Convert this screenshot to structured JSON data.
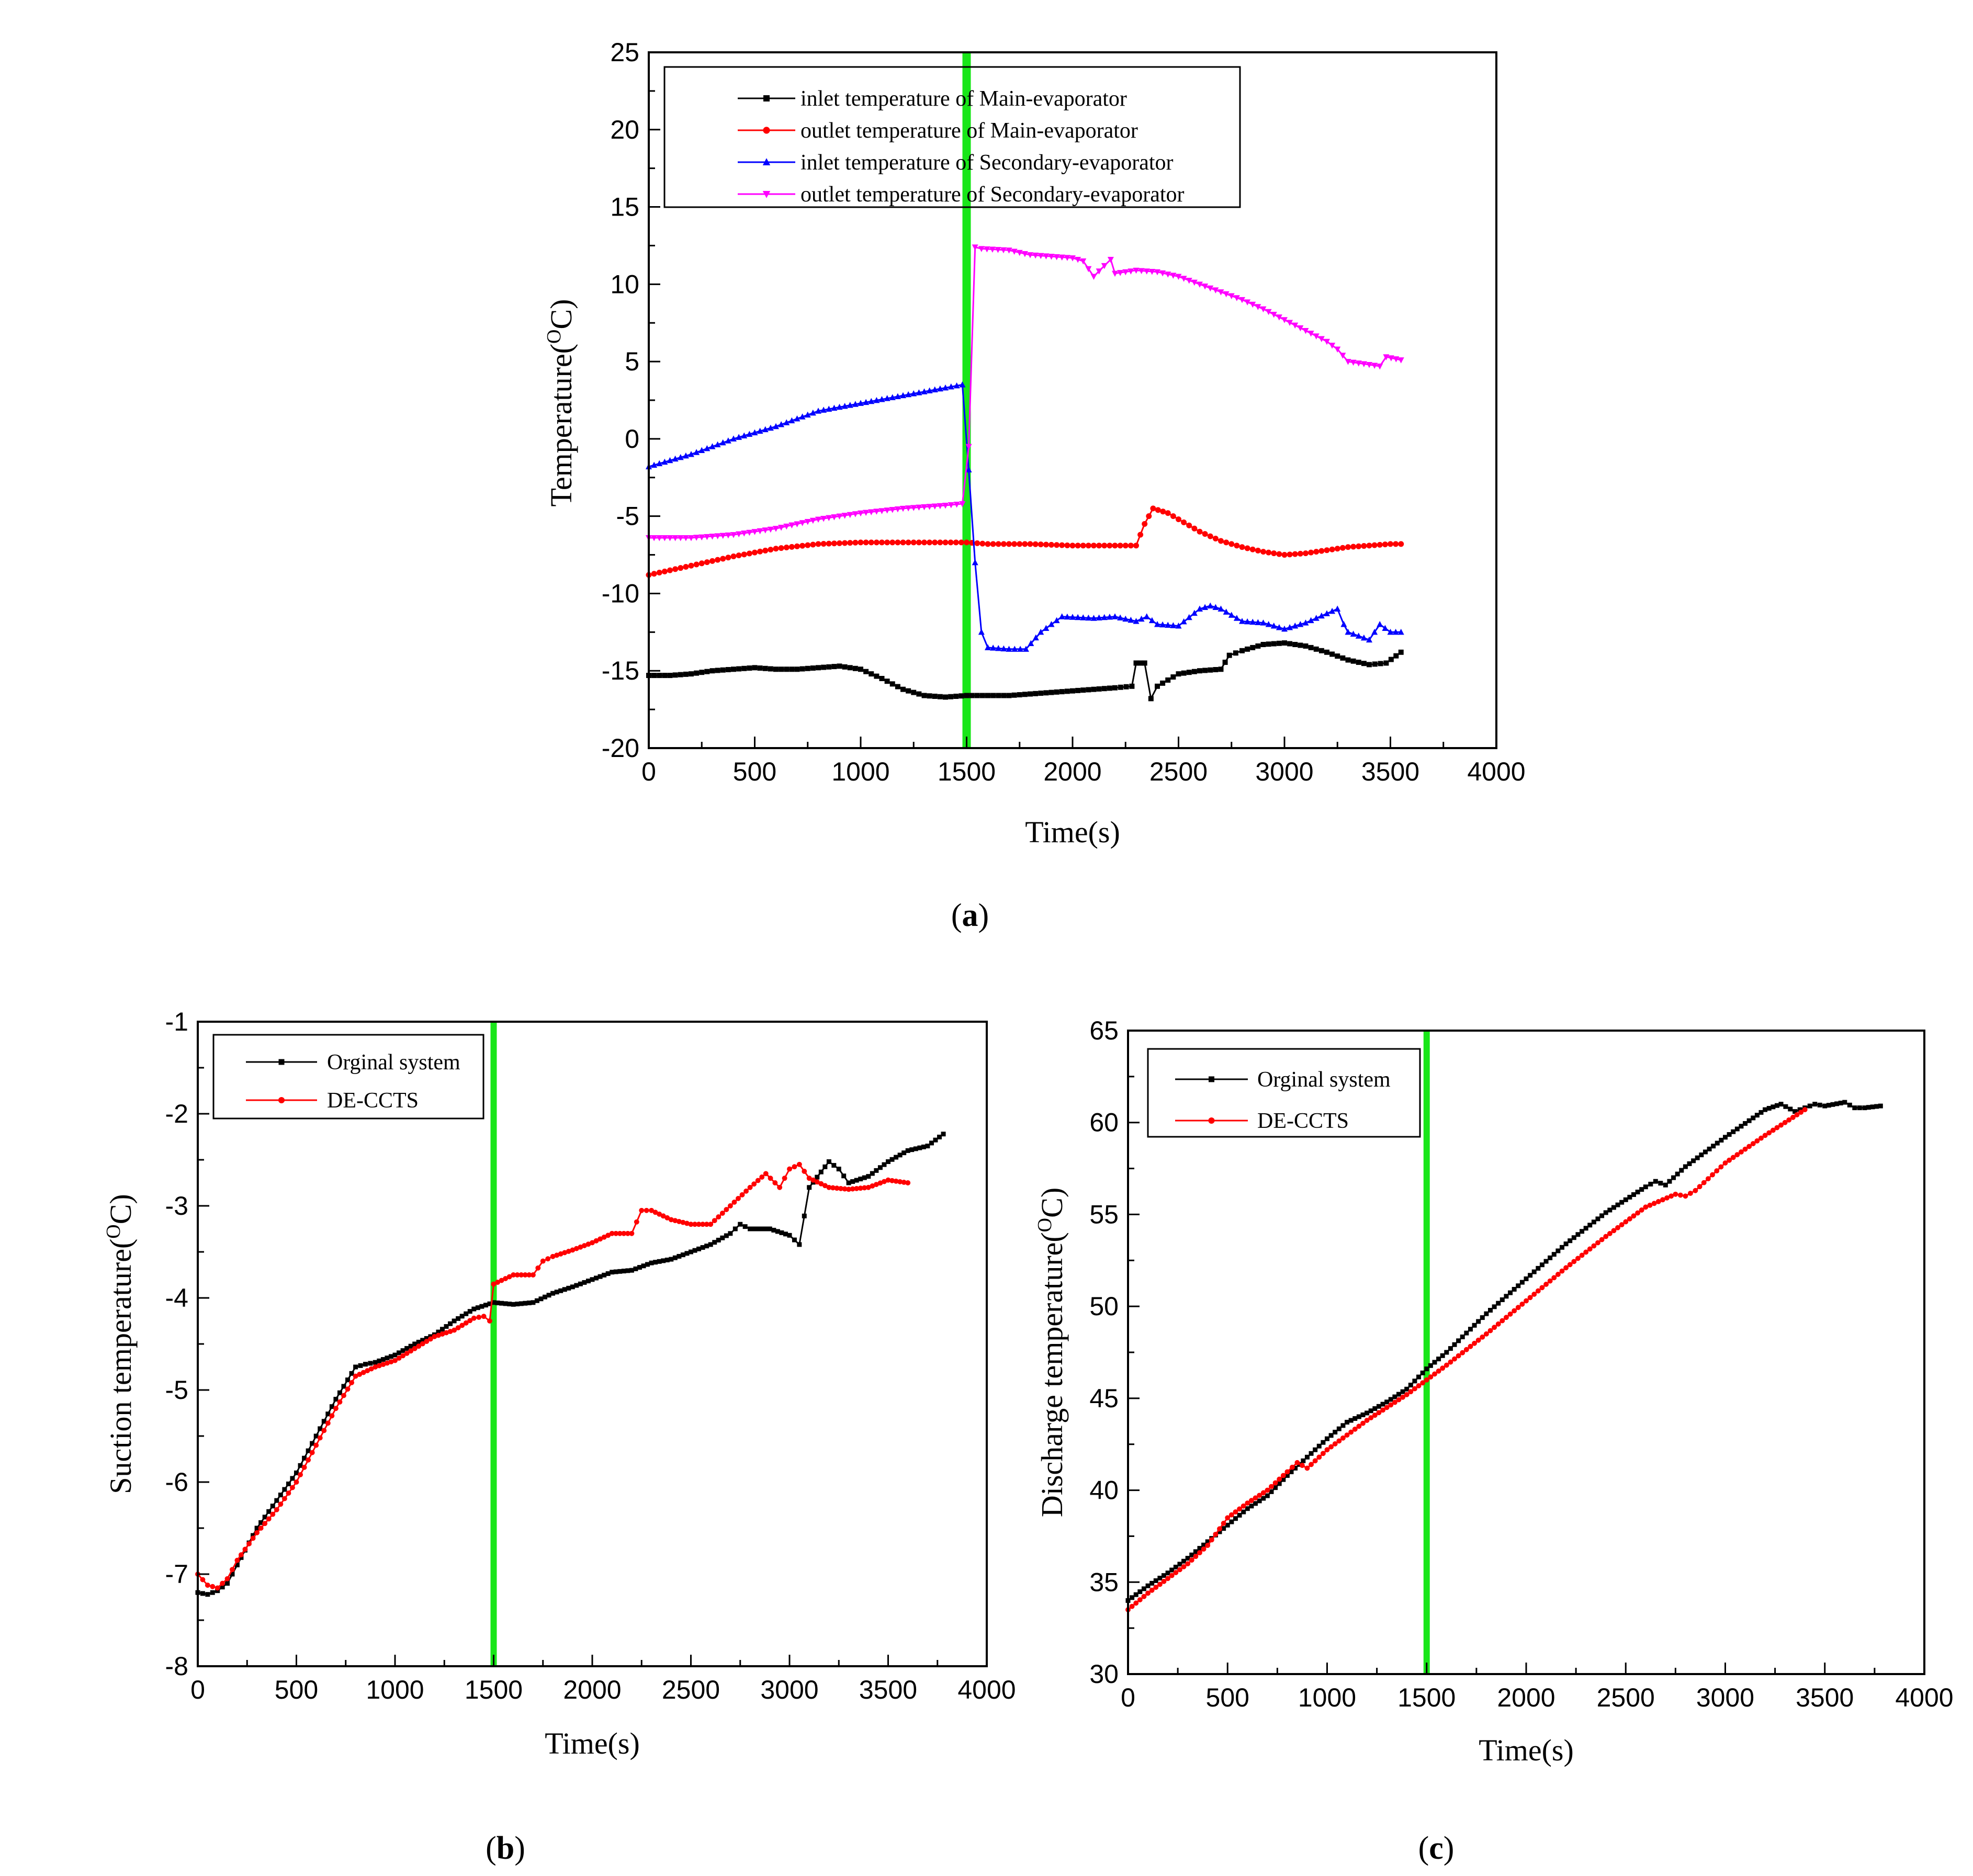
{
  "chart_data": [
    {
      "id": "a",
      "type": "line",
      "caption": "a",
      "xlabel": "Time(s)",
      "ylabel": "Temperature(",
      "ylabel_sup": "O",
      "ylabel_tail": "C)",
      "xlim": [
        0,
        4000
      ],
      "ylim": [
        -20,
        25
      ],
      "xticks": [
        "0",
        "500",
        "1000",
        "1500",
        "2000",
        "2500",
        "3000",
        "3500",
        "4000"
      ],
      "yticks": [
        "-20",
        "-15",
        "-10",
        "-5",
        "0",
        "5",
        "10",
        "15",
        "20",
        "25"
      ],
      "marker_line_x": 1500,
      "marker_line_color": "#19e619",
      "series": [
        {
          "name": "inlet temperature of Main-evaporator",
          "color": "#000000",
          "marker": "square",
          "x": [
            0,
            100,
            200,
            300,
            400,
            500,
            600,
            700,
            800,
            900,
            1000,
            1100,
            1200,
            1300,
            1400,
            1500,
            1600,
            1700,
            1800,
            1900,
            2000,
            2100,
            2200,
            2280,
            2300,
            2340,
            2370,
            2400,
            2500,
            2600,
            2700,
            2740,
            2800,
            2900,
            3000,
            3100,
            3200,
            3300,
            3400,
            3480,
            3550
          ],
          "values": [
            -15.3,
            -15.3,
            -15.2,
            -15.0,
            -14.9,
            -14.8,
            -14.9,
            -14.9,
            -14.8,
            -14.7,
            -14.9,
            -15.5,
            -16.2,
            -16.6,
            -16.7,
            -16.6,
            -16.6,
            -16.6,
            -16.5,
            -16.4,
            -16.3,
            -16.2,
            -16.1,
            -16.0,
            -14.5,
            -14.5,
            -16.8,
            -16.0,
            -15.2,
            -15.0,
            -14.9,
            -14.0,
            -13.7,
            -13.3,
            -13.2,
            -13.4,
            -13.8,
            -14.3,
            -14.6,
            -14.5,
            -13.8
          ]
        },
        {
          "name": "outlet temperature of Main-evaporator",
          "color": "#ff0000",
          "marker": "circle",
          "x": [
            0,
            200,
            400,
            600,
            800,
            1000,
            1200,
            1400,
            1500,
            1600,
            1800,
            2000,
            2200,
            2300,
            2340,
            2380,
            2450,
            2500,
            2600,
            2700,
            2800,
            2900,
            3000,
            3100,
            3200,
            3300,
            3400,
            3500,
            3550
          ],
          "values": [
            -8.8,
            -8.2,
            -7.6,
            -7.1,
            -6.8,
            -6.7,
            -6.7,
            -6.7,
            -6.7,
            -6.8,
            -6.8,
            -6.9,
            -6.9,
            -6.9,
            -5.5,
            -4.5,
            -4.8,
            -5.2,
            -6.0,
            -6.6,
            -7.0,
            -7.3,
            -7.5,
            -7.4,
            -7.2,
            -7.0,
            -6.9,
            -6.8,
            -6.8
          ]
        },
        {
          "name": "inlet temperature of Secondary-evaporator",
          "color": "#0000ff",
          "marker": "triangle",
          "x": [
            0,
            200,
            400,
            600,
            800,
            1000,
            1200,
            1400,
            1480,
            1510,
            1540,
            1570,
            1600,
            1700,
            1780,
            1850,
            1950,
            2100,
            2200,
            2300,
            2350,
            2400,
            2500,
            2600,
            2650,
            2700,
            2750,
            2800,
            2900,
            3000,
            3100,
            3200,
            3250,
            3280,
            3300,
            3400,
            3450,
            3500,
            3550
          ],
          "values": [
            -1.8,
            -1.0,
            0.0,
            0.8,
            1.8,
            2.3,
            2.8,
            3.3,
            3.5,
            -2.0,
            -8.0,
            -12.5,
            -13.5,
            -13.6,
            -13.6,
            -12.5,
            -11.5,
            -11.6,
            -11.5,
            -11.8,
            -11.5,
            -12.0,
            -12.1,
            -11.0,
            -10.8,
            -11.0,
            -11.4,
            -11.8,
            -11.9,
            -12.3,
            -11.9,
            -11.3,
            -11.0,
            -12.0,
            -12.5,
            -13.0,
            -12.0,
            -12.5,
            -12.5
          ]
        },
        {
          "name": "outlet temperature of Secondary-evaporator",
          "color": "#ff00ff",
          "marker": "triangle-down",
          "x": [
            0,
            200,
            400,
            600,
            800,
            1000,
            1200,
            1400,
            1480,
            1510,
            1540,
            1570,
            1700,
            1800,
            1900,
            2000,
            2050,
            2100,
            2150,
            2180,
            2200,
            2300,
            2400,
            2500,
            2600,
            2700,
            2800,
            2900,
            3000,
            3100,
            3200,
            3250,
            3300,
            3400,
            3450,
            3480,
            3550
          ],
          "values": [
            -6.4,
            -6.4,
            -6.2,
            -5.8,
            -5.2,
            -4.8,
            -4.5,
            -4.3,
            -4.2,
            -0.5,
            12.4,
            12.3,
            12.2,
            11.9,
            11.8,
            11.7,
            11.5,
            10.5,
            11.2,
            11.6,
            10.7,
            10.9,
            10.8,
            10.5,
            10.0,
            9.5,
            9.0,
            8.4,
            7.7,
            7.0,
            6.3,
            5.8,
            5.0,
            4.8,
            4.7,
            5.3,
            5.1
          ]
        }
      ]
    },
    {
      "id": "b",
      "type": "line",
      "caption": "b",
      "xlabel": "Time(s)",
      "ylabel": "Suction temperature(",
      "ylabel_sup": "O",
      "ylabel_tail": "C)",
      "xlim": [
        0,
        4000
      ],
      "ylim": [
        -8,
        -1
      ],
      "xticks": [
        "0",
        "500",
        "1000",
        "1500",
        "2000",
        "2500",
        "3000",
        "3500",
        "4000"
      ],
      "yticks": [
        "-8",
        "-7",
        "-6",
        "-5",
        "-4",
        "-3",
        "-2",
        "-1"
      ],
      "marker_line_x": 1500,
      "marker_line_color": "#19e619",
      "series": [
        {
          "name": "Orginal system",
          "color": "#000000",
          "marker": "square",
          "x": [
            0,
            50,
            100,
            150,
            200,
            300,
            400,
            500,
            600,
            700,
            800,
            850,
            900,
            1000,
            1100,
            1200,
            1300,
            1400,
            1500,
            1600,
            1700,
            1800,
            1900,
            2000,
            2100,
            2200,
            2300,
            2400,
            2500,
            2600,
            2700,
            2750,
            2800,
            2900,
            3000,
            3050,
            3100,
            3200,
            3250,
            3300,
            3400,
            3500,
            3600,
            3700,
            3780
          ],
          "values": [
            -7.2,
            -7.22,
            -7.18,
            -7.1,
            -6.9,
            -6.5,
            -6.2,
            -5.9,
            -5.5,
            -5.1,
            -4.75,
            -4.72,
            -4.7,
            -4.62,
            -4.5,
            -4.4,
            -4.25,
            -4.12,
            -4.05,
            -4.07,
            -4.05,
            -3.95,
            -3.88,
            -3.8,
            -3.72,
            -3.7,
            -3.62,
            -3.58,
            -3.5,
            -3.42,
            -3.3,
            -3.2,
            -3.25,
            -3.25,
            -3.32,
            -3.42,
            -2.8,
            -2.52,
            -2.6,
            -2.75,
            -2.68,
            -2.52,
            -2.4,
            -2.35,
            -2.22
          ]
        },
        {
          "name": "DE-CCTS",
          "color": "#ff0000",
          "marker": "circle",
          "x": [
            0,
            50,
            100,
            150,
            200,
            300,
            400,
            500,
            600,
            700,
            800,
            900,
            1000,
            1100,
            1200,
            1300,
            1400,
            1450,
            1480,
            1500,
            1600,
            1700,
            1750,
            1800,
            1900,
            2000,
            2100,
            2200,
            2250,
            2300,
            2400,
            2500,
            2600,
            2700,
            2800,
            2880,
            2950,
            3000,
            3050,
            3100,
            3200,
            3300,
            3400,
            3500,
            3600
          ],
          "values": [
            -7.0,
            -7.12,
            -7.15,
            -7.05,
            -6.85,
            -6.55,
            -6.3,
            -6.0,
            -5.6,
            -5.2,
            -4.85,
            -4.75,
            -4.68,
            -4.55,
            -4.42,
            -4.35,
            -4.22,
            -4.2,
            -4.25,
            -3.85,
            -3.75,
            -3.75,
            -3.6,
            -3.55,
            -3.48,
            -3.4,
            -3.3,
            -3.3,
            -3.05,
            -3.05,
            -3.15,
            -3.2,
            -3.2,
            -3.0,
            -2.8,
            -2.65,
            -2.8,
            -2.6,
            -2.55,
            -2.7,
            -2.8,
            -2.82,
            -2.8,
            -2.72,
            -2.75
          ]
        }
      ]
    },
    {
      "id": "c",
      "type": "line",
      "caption": "c",
      "xlabel": "Time(s)",
      "ylabel": "Discharge temperature(",
      "ylabel_sup": "O",
      "ylabel_tail": "C)",
      "xlim": [
        0,
        4000
      ],
      "ylim": [
        30,
        65
      ],
      "xticks": [
        "0",
        "500",
        "1000",
        "1500",
        "2000",
        "2500",
        "3000",
        "3500",
        "4000"
      ],
      "yticks": [
        "30",
        "35",
        "40",
        "45",
        "50",
        "55",
        "60",
        "65"
      ],
      "marker_line_x": 1500,
      "marker_line_color": "#19e619",
      "series": [
        {
          "name": "Orginal system",
          "color": "#000000",
          "marker": "square",
          "x": [
            0,
            100,
            200,
            300,
            400,
            500,
            600,
            700,
            800,
            900,
            1000,
            1100,
            1200,
            1300,
            1400,
            1500,
            1600,
            1800,
            2000,
            2200,
            2400,
            2600,
            2650,
            2700,
            2800,
            3000,
            3200,
            3280,
            3350,
            3400,
            3450,
            3500,
            3600,
            3650,
            3700,
            3780
          ],
          "values": [
            34.0,
            34.8,
            35.5,
            36.3,
            37.2,
            38.1,
            39.0,
            39.7,
            40.8,
            41.8,
            42.8,
            43.7,
            44.2,
            44.8,
            45.5,
            46.6,
            47.5,
            49.6,
            51.5,
            53.4,
            55.1,
            56.5,
            56.8,
            56.6,
            57.6,
            59.2,
            60.7,
            61.0,
            60.6,
            60.8,
            61.0,
            60.9,
            61.1,
            60.8,
            60.8,
            60.9
          ]
        },
        {
          "name": "DE-CCTS",
          "color": "#ff0000",
          "marker": "circle",
          "x": [
            0,
            100,
            200,
            300,
            400,
            500,
            600,
            700,
            800,
            850,
            900,
            1000,
            1100,
            1200,
            1300,
            1400,
            1500,
            1600,
            1800,
            2000,
            2200,
            2400,
            2600,
            2750,
            2800,
            2850,
            3000,
            3200,
            3400
          ],
          "values": [
            33.5,
            34.4,
            35.2,
            36.0,
            37.0,
            38.5,
            39.3,
            40.0,
            41.0,
            41.5,
            41.2,
            42.2,
            43.0,
            43.8,
            44.5,
            45.2,
            46.0,
            46.8,
            48.5,
            50.3,
            52.1,
            53.8,
            55.4,
            56.1,
            56.0,
            56.3,
            57.8,
            59.3,
            60.7
          ]
        }
      ]
    }
  ]
}
